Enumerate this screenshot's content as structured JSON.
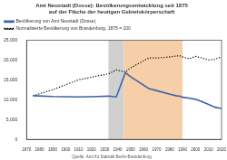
{
  "chart_data": {
    "type": "line",
    "title": "Amt Neustadt (Dosse): Bevölkerungsentwicklung seit 1875 auf der Fläche der heutigen Gebietskörperschaft",
    "source": "Quelle: Amt für Statistik Berlin-Brandenburg",
    "x": [
      1875,
      1890,
      1910,
      1925,
      1933,
      1939,
      1946,
      1950,
      1964,
      1971,
      1981,
      1985,
      1989,
      1990,
      1995,
      2000,
      2005,
      2010,
      2015,
      2020
    ],
    "series": [
      {
        "name": "Bevölkerung von Amt Neustadt (Dosse)",
        "color": "#3d63a8",
        "line_style": "solid",
        "values": [
          11000,
          10800,
          10700,
          10800,
          10900,
          10700,
          16800,
          15800,
          12800,
          12200,
          11300,
          11000,
          10800,
          10600,
          10400,
          10100,
          9500,
          8800,
          8100,
          7800
        ]
      },
      {
        "name": "Normalisierte Bevölkerung von Brandenburg, 1875 = 100",
        "color": "#000000",
        "line_style": "dotted",
        "values": [
          11000,
          12500,
          15000,
          16000,
          16500,
          17500,
          17000,
          18000,
          20500,
          20500,
          20800,
          21000,
          21000,
          20800,
          20300,
          20900,
          20500,
          20000,
          20200,
          20800
        ]
      }
    ],
    "periods": [
      {
        "from": 1933,
        "to": 1945,
        "color": "#d0d0d0"
      },
      {
        "from": 1945,
        "to": 1990,
        "color": "#f6cfa8"
      }
    ],
    "xlim": [
      1870,
      2020
    ],
    "xticks": [
      1870,
      1880,
      1890,
      1900,
      1910,
      1920,
      1930,
      1940,
      1950,
      1960,
      1970,
      1980,
      1990,
      2000,
      2010,
      2020
    ],
    "ylim": [
      0,
      25000
    ],
    "yticks": [
      0,
      {
        "value": 5000,
        "label": "5,000"
      },
      {
        "value": 10000,
        "label": "10,000"
      },
      {
        "value": 15000,
        "label": "15,000"
      },
      {
        "value": 20000,
        "label": "20,000"
      },
      {
        "value": 25000,
        "label": "25,000"
      }
    ],
    "grid": false,
    "legend": "top-left"
  }
}
